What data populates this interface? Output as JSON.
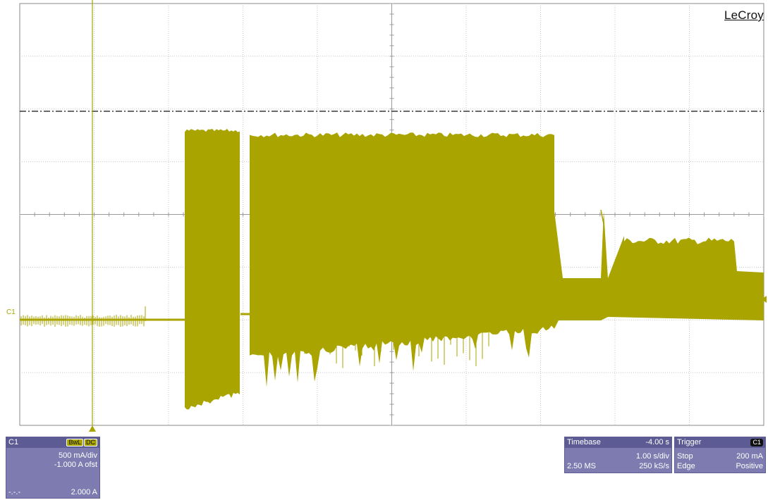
{
  "brand": "LeCroy",
  "trace_color": "#a9a400",
  "channel_marker": "C1",
  "channel_panel": {
    "name": "C1",
    "badges": [
      "BwL",
      "DC"
    ],
    "vertical_scale": "500 mA/div",
    "offset": "-1.000 A ofst",
    "line_style": "-.-.-",
    "level": "2.000 A"
  },
  "timebase_panel": {
    "title": "Timebase",
    "delay": "-4.00 s",
    "scale": "1.00 s/div",
    "memory": "2.50 MS",
    "sample_rate": "250 kS/s"
  },
  "trigger_panel": {
    "title": "Trigger",
    "source_badge": "C1",
    "mode": "Stop",
    "level": "200 mA",
    "type": "Edge",
    "slope": "Positive"
  }
}
